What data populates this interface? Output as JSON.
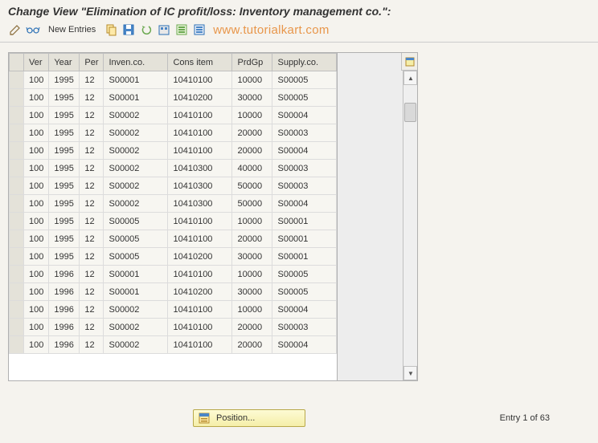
{
  "header": {
    "title": "Change View \"Elimination of IC profit/loss: Inventory management co.\":"
  },
  "toolbar": {
    "new_entries_label": "New Entries",
    "watermark": "www.tutorialkart.com",
    "icon_colors": {
      "pencil": "#8a6d3b",
      "glasses": "#2a6fb5",
      "copy": "#d9a441",
      "save": "#2a6fb5",
      "undo": "#6aa84f",
      "delete": "#2a6fb5",
      "select": "#6aa84f",
      "select2": "#2a6fb5"
    }
  },
  "table": {
    "columns": [
      "Ver",
      "Year",
      "Per",
      "Inven.co.",
      "Cons item",
      "PrdGp",
      "Supply.co."
    ],
    "rows": [
      [
        "100",
        "1995",
        "12",
        "S00001",
        "10410100",
        "10000",
        "S00005"
      ],
      [
        "100",
        "1995",
        "12",
        "S00001",
        "10410200",
        "30000",
        "S00005"
      ],
      [
        "100",
        "1995",
        "12",
        "S00002",
        "10410100",
        "10000",
        "S00004"
      ],
      [
        "100",
        "1995",
        "12",
        "S00002",
        "10410100",
        "20000",
        "S00003"
      ],
      [
        "100",
        "1995",
        "12",
        "S00002",
        "10410100",
        "20000",
        "S00004"
      ],
      [
        "100",
        "1995",
        "12",
        "S00002",
        "10410300",
        "40000",
        "S00003"
      ],
      [
        "100",
        "1995",
        "12",
        "S00002",
        "10410300",
        "50000",
        "S00003"
      ],
      [
        "100",
        "1995",
        "12",
        "S00002",
        "10410300",
        "50000",
        "S00004"
      ],
      [
        "100",
        "1995",
        "12",
        "S00005",
        "10410100",
        "10000",
        "S00001"
      ],
      [
        "100",
        "1995",
        "12",
        "S00005",
        "10410100",
        "20000",
        "S00001"
      ],
      [
        "100",
        "1995",
        "12",
        "S00005",
        "10410200",
        "30000",
        "S00001"
      ],
      [
        "100",
        "1996",
        "12",
        "S00001",
        "10410100",
        "10000",
        "S00005"
      ],
      [
        "100",
        "1996",
        "12",
        "S00001",
        "10410200",
        "30000",
        "S00005"
      ],
      [
        "100",
        "1996",
        "12",
        "S00002",
        "10410100",
        "10000",
        "S00004"
      ],
      [
        "100",
        "1996",
        "12",
        "S00002",
        "10410100",
        "20000",
        "S00003"
      ],
      [
        "100",
        "1996",
        "12",
        "S00002",
        "10410100",
        "20000",
        "S00004"
      ]
    ]
  },
  "footer": {
    "position_label": "Position...",
    "entry_text": "Entry 1 of 63"
  },
  "colors": {
    "background": "#f5f3ee",
    "header_bg": "#e4e2d9",
    "cell_bg": "#f7f6f1",
    "border": "#c0c0c0",
    "button_bg_top": "#fdfbd4",
    "button_bg_bottom": "#f5eea8",
    "button_border": "#b8a84a",
    "watermark": "#e8964a"
  }
}
